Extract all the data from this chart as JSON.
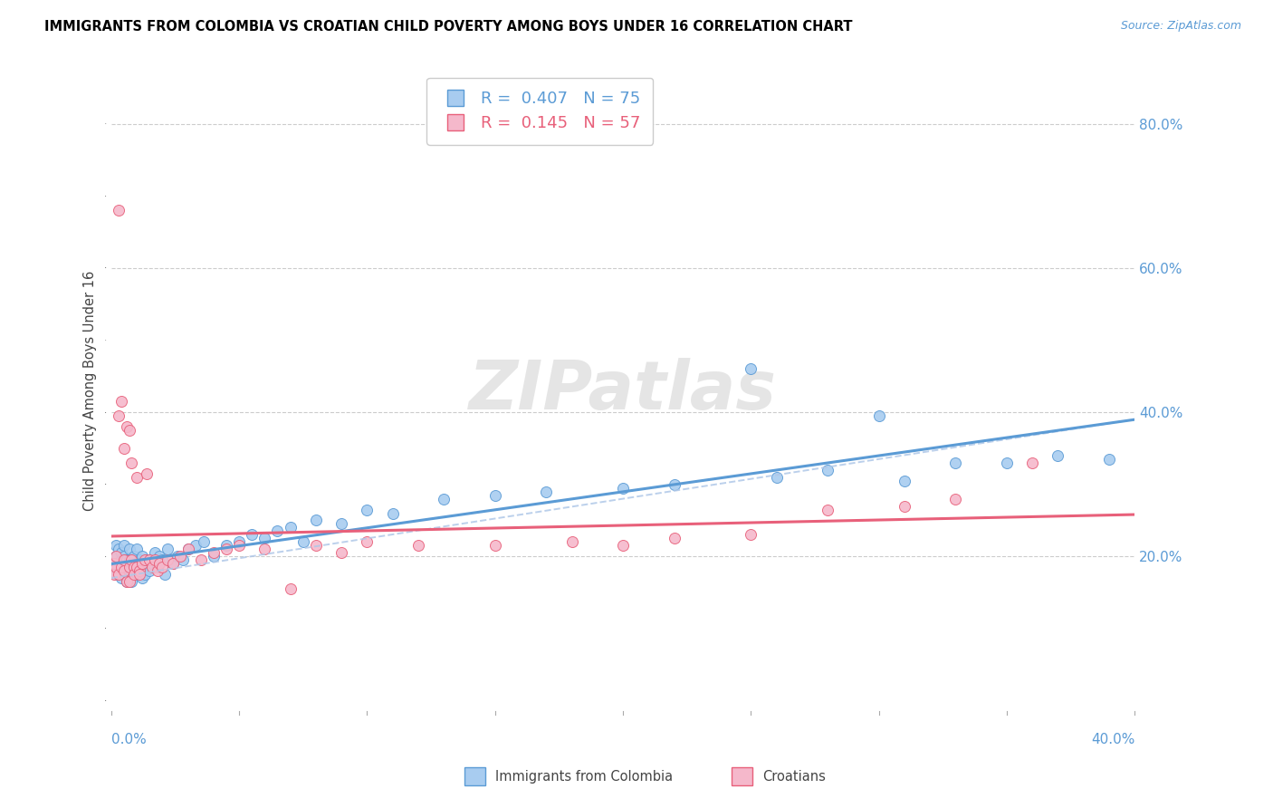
{
  "title": "IMMIGRANTS FROM COLOMBIA VS CROATIAN CHILD POVERTY AMONG BOYS UNDER 16 CORRELATION CHART",
  "source": "Source: ZipAtlas.com",
  "ylabel": "Child Poverty Among Boys Under 16",
  "ytick_labels": [
    "80.0%",
    "60.0%",
    "40.0%",
    "20.0%"
  ],
  "ytick_values": [
    0.8,
    0.6,
    0.4,
    0.2
  ],
  "xmin": 0.0,
  "xmax": 0.4,
  "ymin": -0.02,
  "ymax": 0.88,
  "color_colombia": "#A8CCF0",
  "color_croatia": "#F5B8CB",
  "trendline_colombia_color": "#5B9BD5",
  "trendline_croatia_color": "#E8607A",
  "trendline_ci_color": "#B0C8E8",
  "colombia_R": 0.407,
  "colombia_N": 75,
  "croatia_R": 0.145,
  "croatia_N": 57,
  "colombia_scatter_x": [
    0.001,
    0.001,
    0.002,
    0.002,
    0.002,
    0.003,
    0.003,
    0.003,
    0.004,
    0.004,
    0.004,
    0.005,
    0.005,
    0.005,
    0.005,
    0.006,
    0.006,
    0.006,
    0.007,
    0.007,
    0.007,
    0.008,
    0.008,
    0.008,
    0.009,
    0.009,
    0.01,
    0.01,
    0.011,
    0.011,
    0.012,
    0.012,
    0.013,
    0.013,
    0.014,
    0.015,
    0.016,
    0.017,
    0.018,
    0.019,
    0.02,
    0.021,
    0.022,
    0.024,
    0.026,
    0.028,
    0.03,
    0.033,
    0.036,
    0.04,
    0.045,
    0.05,
    0.055,
    0.06,
    0.065,
    0.07,
    0.075,
    0.08,
    0.09,
    0.1,
    0.11,
    0.13,
    0.15,
    0.17,
    0.2,
    0.22,
    0.26,
    0.28,
    0.31,
    0.33,
    0.35,
    0.37,
    0.39,
    0.25,
    0.3
  ],
  "colombia_scatter_y": [
    0.195,
    0.185,
    0.2,
    0.175,
    0.215,
    0.19,
    0.185,
    0.21,
    0.17,
    0.195,
    0.205,
    0.18,
    0.175,
    0.2,
    0.215,
    0.185,
    0.195,
    0.165,
    0.18,
    0.195,
    0.21,
    0.175,
    0.19,
    0.165,
    0.185,
    0.2,
    0.175,
    0.21,
    0.18,
    0.195,
    0.17,
    0.2,
    0.185,
    0.175,
    0.195,
    0.18,
    0.19,
    0.205,
    0.185,
    0.2,
    0.195,
    0.175,
    0.21,
    0.19,
    0.2,
    0.195,
    0.21,
    0.215,
    0.22,
    0.2,
    0.215,
    0.22,
    0.23,
    0.225,
    0.235,
    0.24,
    0.22,
    0.25,
    0.245,
    0.265,
    0.26,
    0.28,
    0.285,
    0.29,
    0.295,
    0.3,
    0.31,
    0.32,
    0.305,
    0.33,
    0.33,
    0.34,
    0.335,
    0.46,
    0.395
  ],
  "croatia_scatter_x": [
    0.001,
    0.001,
    0.002,
    0.002,
    0.003,
    0.003,
    0.003,
    0.004,
    0.004,
    0.005,
    0.005,
    0.005,
    0.006,
    0.006,
    0.007,
    0.007,
    0.007,
    0.008,
    0.008,
    0.009,
    0.009,
    0.01,
    0.01,
    0.011,
    0.011,
    0.012,
    0.013,
    0.014,
    0.015,
    0.016,
    0.017,
    0.018,
    0.019,
    0.02,
    0.022,
    0.024,
    0.027,
    0.03,
    0.035,
    0.04,
    0.045,
    0.05,
    0.06,
    0.07,
    0.08,
    0.09,
    0.1,
    0.12,
    0.15,
    0.18,
    0.2,
    0.22,
    0.25,
    0.28,
    0.31,
    0.33,
    0.36
  ],
  "croatia_scatter_y": [
    0.19,
    0.175,
    0.185,
    0.2,
    0.68,
    0.175,
    0.395,
    0.415,
    0.185,
    0.18,
    0.35,
    0.195,
    0.38,
    0.165,
    0.185,
    0.375,
    0.165,
    0.33,
    0.195,
    0.185,
    0.175,
    0.31,
    0.185,
    0.18,
    0.175,
    0.19,
    0.195,
    0.315,
    0.195,
    0.185,
    0.195,
    0.18,
    0.19,
    0.185,
    0.195,
    0.19,
    0.2,
    0.21,
    0.195,
    0.205,
    0.21,
    0.215,
    0.21,
    0.155,
    0.215,
    0.205,
    0.22,
    0.215,
    0.215,
    0.22,
    0.215,
    0.225,
    0.23,
    0.265,
    0.27,
    0.28,
    0.33
  ],
  "ci_intercept": 0.17,
  "ci_slope": 0.55
}
